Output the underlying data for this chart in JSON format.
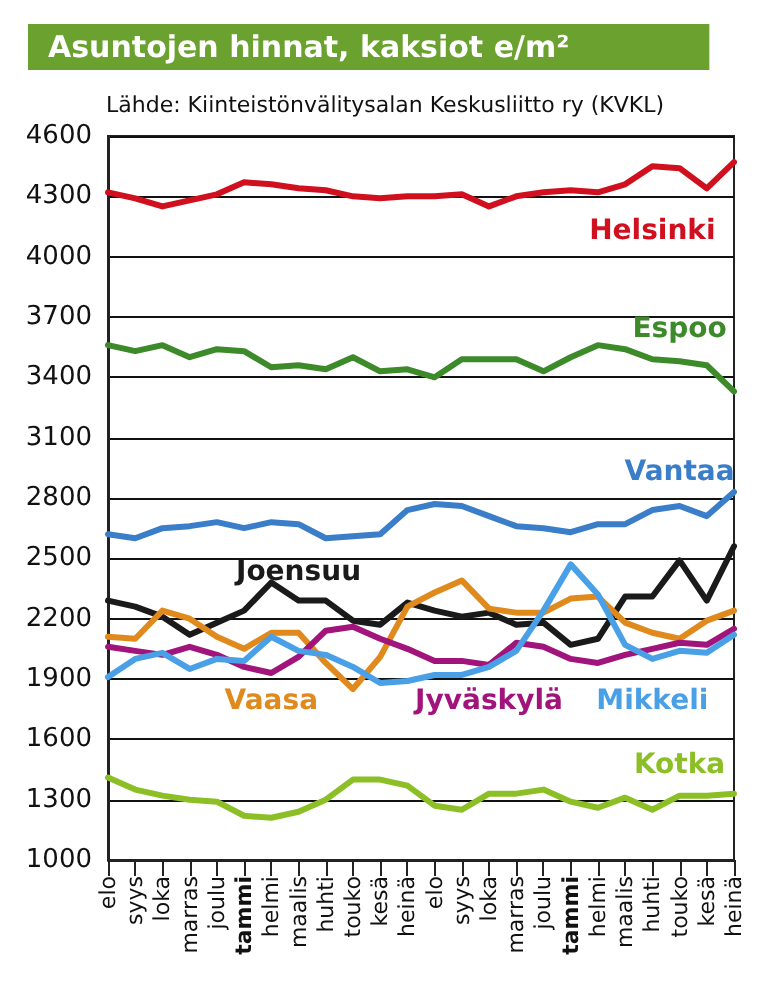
{
  "chart_data": {
    "type": "line",
    "title": "Asuntojen hinnat, kaksiot e/m²",
    "subtitle": "Lähde: Kiinteistönvälitysalan Keskusliitto ry (KVKL)",
    "categories": [
      "elo",
      "syys",
      "loka",
      "marras",
      "joulu",
      "tammi",
      "helmi",
      "maalis",
      "huhti",
      "touko",
      "kesä",
      "heinä",
      "elo",
      "syys",
      "loka",
      "marras",
      "joulu",
      "tammi",
      "helmi",
      "maalis",
      "huhti",
      "touko",
      "kesä",
      "heinä"
    ],
    "series": [
      {
        "name": "Helsinki",
        "color": "#d0101e",
        "values": [
          4320,
          4290,
          4250,
          4280,
          4310,
          4370,
          4360,
          4340,
          4330,
          4300,
          4290,
          4300,
          4300,
          4310,
          4250,
          4300,
          4320,
          4330,
          4320,
          4360,
          4450,
          4440,
          4340,
          4470
        ]
      },
      {
        "name": "Espoo",
        "color": "#3d8a2a",
        "values": [
          3560,
          3530,
          3560,
          3500,
          3540,
          3530,
          3450,
          3460,
          3440,
          3500,
          3430,
          3440,
          3400,
          3490,
          3490,
          3490,
          3430,
          3500,
          3560,
          3540,
          3490,
          3480,
          3460,
          3330
        ]
      },
      {
        "name": "Vantaa",
        "color": "#3a7dc9",
        "values": [
          2620,
          2600,
          2650,
          2660,
          2680,
          2650,
          2680,
          2670,
          2600,
          2610,
          2620,
          2740,
          2770,
          2760,
          2710,
          2660,
          2650,
          2630,
          2670,
          2670,
          2740,
          2760,
          2710,
          2830
        ]
      },
      {
        "name": "Joensuu",
        "color": "#1a1a1a",
        "values": [
          2290,
          2260,
          2210,
          2120,
          2180,
          2240,
          2380,
          2290,
          2290,
          2190,
          2170,
          2280,
          2240,
          2210,
          2230,
          2170,
          2180,
          2070,
          2100,
          2310,
          2310,
          2490,
          2290,
          2560
        ]
      },
      {
        "name": "Vaasa",
        "color": "#e08a1e",
        "values": [
          2110,
          2100,
          2240,
          2200,
          2110,
          2050,
          2130,
          2130,
          1980,
          1850,
          2010,
          2260,
          2330,
          2390,
          2250,
          2230,
          2230,
          2300,
          2310,
          2180,
          2130,
          2100,
          2190,
          2240
        ]
      },
      {
        "name": "Jyväskylä",
        "color": "#a0147c",
        "values": [
          2060,
          2040,
          2020,
          2060,
          2020,
          1960,
          1930,
          2010,
          2140,
          2160,
          2100,
          2050,
          1990,
          1990,
          1970,
          2080,
          2060,
          2000,
          1980,
          2020,
          2050,
          2080,
          2070,
          2150
        ]
      },
      {
        "name": "Mikkeli",
        "color": "#4aa0e6",
        "values": [
          1910,
          2000,
          2030,
          1950,
          2000,
          1990,
          2110,
          2040,
          2020,
          1960,
          1880,
          1890,
          1920,
          1920,
          1960,
          2040,
          2240,
          2470,
          2320,
          2070,
          2000,
          2040,
          2030,
          2120
        ]
      },
      {
        "name": "Kotka",
        "color": "#8cbf26",
        "values": [
          1410,
          1350,
          1320,
          1300,
          1290,
          1220,
          1210,
          1240,
          1300,
          1400,
          1400,
          1370,
          1270,
          1250,
          1330,
          1330,
          1350,
          1290,
          1260,
          1310,
          1250,
          1320,
          1320,
          1330
        ]
      }
    ],
    "ylim": [
      1000,
      4600
    ],
    "yticks": [
      1000,
      1300,
      1600,
      1900,
      2200,
      2500,
      2800,
      3100,
      3400,
      3700,
      4000,
      4300,
      4600
    ],
    "grid": "y",
    "legend": false,
    "marker": "none",
    "line_style": "solid"
  }
}
